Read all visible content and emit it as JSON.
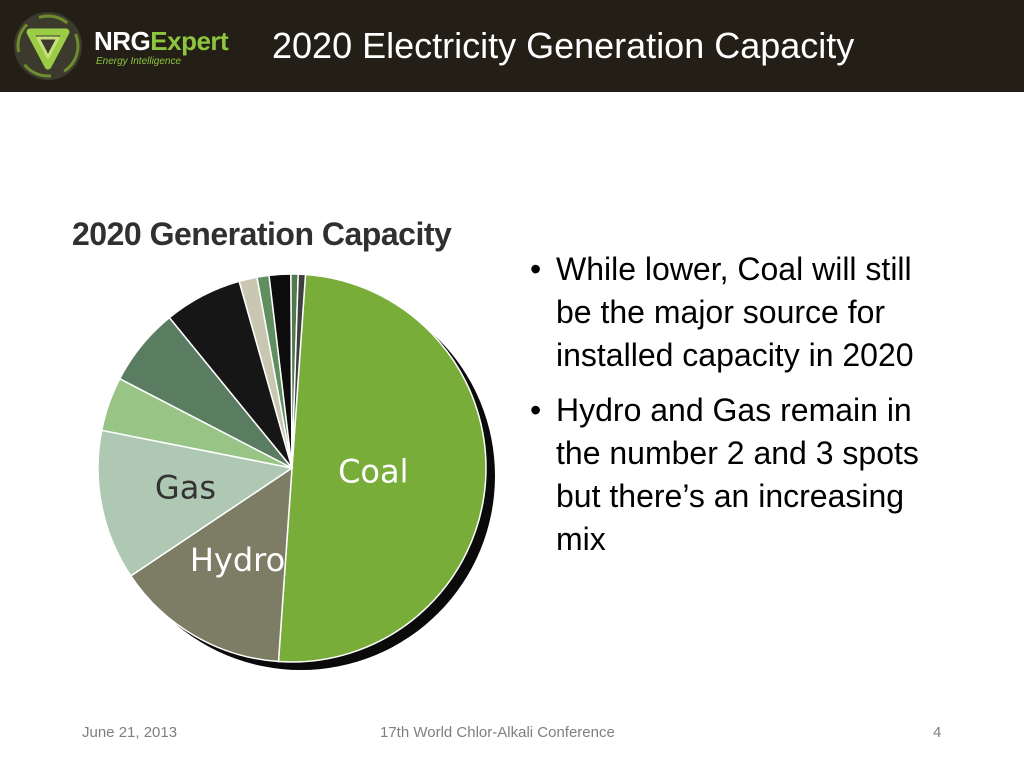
{
  "header": {
    "brand_part1": "NRG",
    "brand_part2": "Expert",
    "tagline": "Energy Intelligence",
    "title": "2020 Electricity Generation Capacity",
    "colors": {
      "background": "#231f16",
      "accent": "#8cc63f"
    }
  },
  "chart_data": {
    "type": "pie",
    "title": "2020 Generation Capacity",
    "slices": [
      {
        "label": "Coal",
        "value": 50.0,
        "color": "#78ad3a"
      },
      {
        "label": "Hydro",
        "value": 14.5,
        "color": "#7d7c64"
      },
      {
        "label": "Gas",
        "value": 12.5,
        "color": "#aec8b3"
      },
      {
        "label": "",
        "value": 4.5,
        "color": "#98c586"
      },
      {
        "label": "",
        "value": 6.5,
        "color": "#5a7c60"
      },
      {
        "label": "",
        "value": 6.5,
        "color": "#161616"
      },
      {
        "label": "",
        "value": 1.5,
        "color": "#c9c7b2"
      },
      {
        "label": "",
        "value": 1.0,
        "color": "#5f8f5f"
      },
      {
        "label": "",
        "value": 1.8,
        "color": "#0c0c0c"
      },
      {
        "label": "",
        "value": 0.6,
        "color": "#4e7a4e"
      },
      {
        "label": "",
        "value": 0.6,
        "color": "#3f3f3f"
      }
    ],
    "start_angle_deg": 4,
    "direction": "clockwise",
    "legend": "none"
  },
  "bullets": [
    {
      "symbol": "•",
      "text": "While lower, Coal will still be the major source for installed capacity in 2020"
    },
    {
      "symbol": "•",
      "text": "Hydro and Gas remain in the number 2 and 3 spots but there’s an increasing mix"
    }
  ],
  "footer": {
    "date": "June 21, 2013",
    "conference": "17th World Chlor-Alkali Conference",
    "page": "4"
  }
}
